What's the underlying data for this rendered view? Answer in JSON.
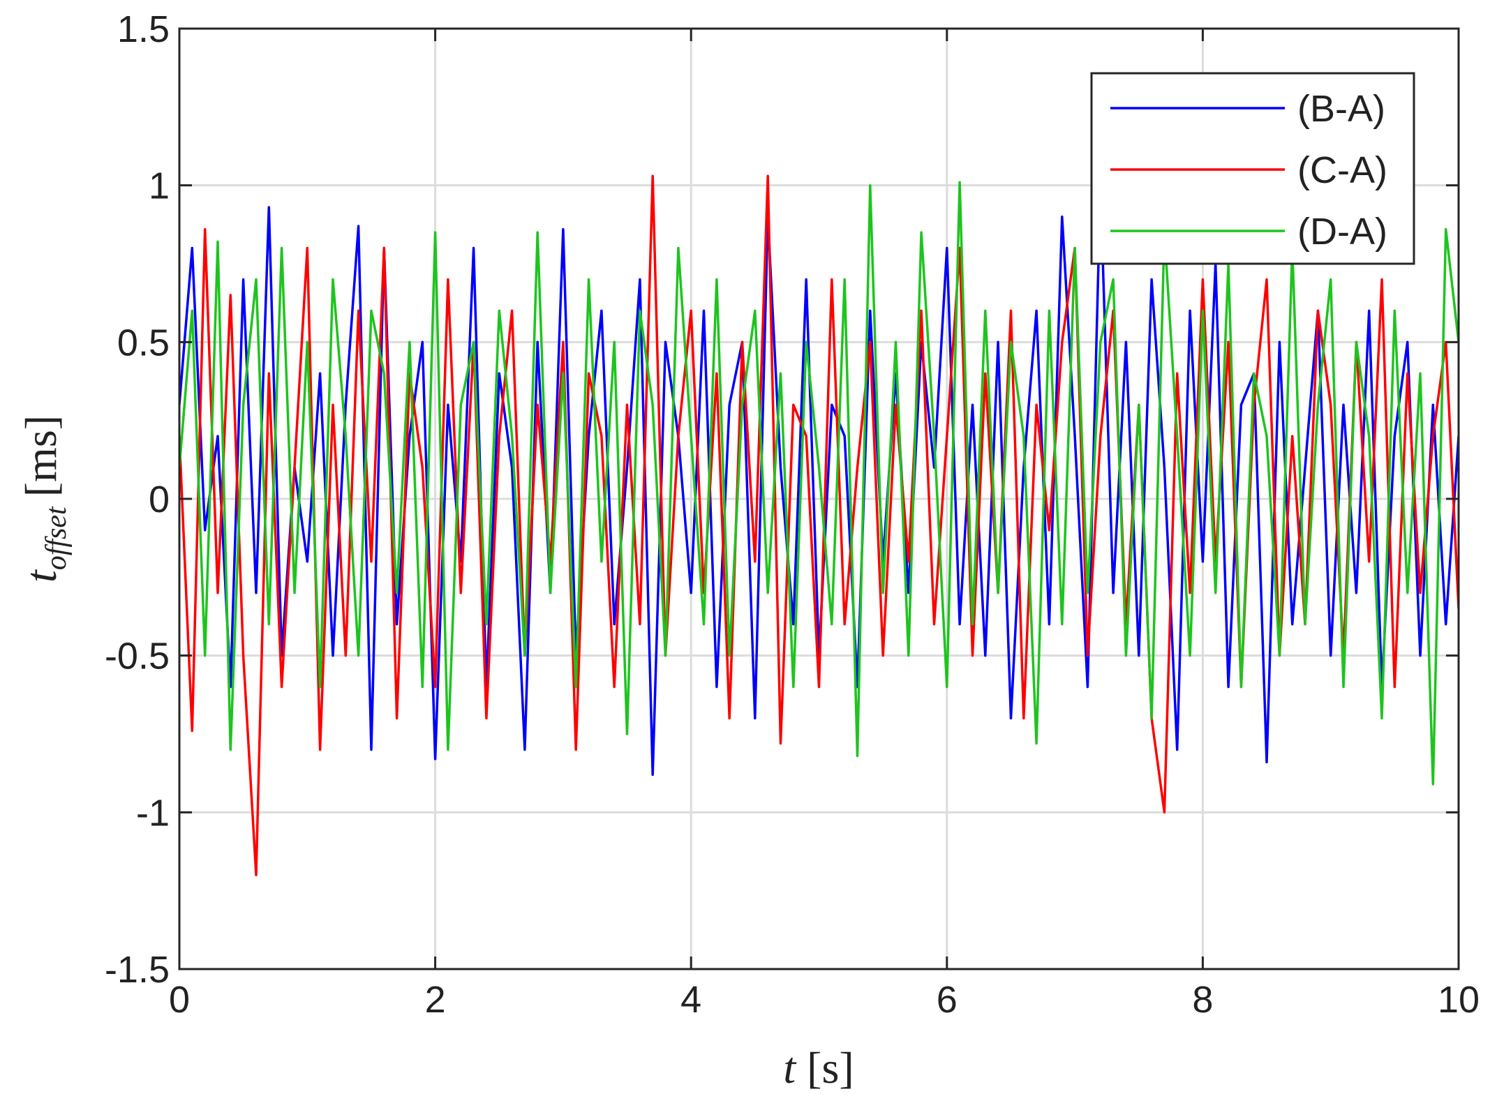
{
  "chart_data": {
    "type": "line",
    "xlabel": "t",
    "xlabel_unit": "[s]",
    "ylabel": "t",
    "ylabel_sub": "offset",
    "ylabel_unit": "[ms]",
    "xlim": [
      0,
      10
    ],
    "xticks": [
      0,
      2,
      4,
      6,
      8,
      10
    ],
    "ylim": [
      -1.5,
      1.5
    ],
    "yticks": [
      -1.5,
      -1,
      -0.5,
      0,
      0.5,
      1,
      1.5
    ],
    "grid": true,
    "legend": "upper right",
    "x": [
      0,
      0.1,
      0.2,
      0.3,
      0.4,
      0.5,
      0.6,
      0.7,
      0.8,
      0.9,
      1,
      1.1,
      1.2,
      1.3,
      1.4,
      1.5,
      1.6,
      1.7,
      1.8,
      1.9,
      2,
      2.1,
      2.2,
      2.3,
      2.4,
      2.5,
      2.6,
      2.7,
      2.8,
      2.9,
      3,
      3.1,
      3.2,
      3.3,
      3.4,
      3.5,
      3.6,
      3.7,
      3.8,
      3.9,
      4,
      4.1,
      4.2,
      4.3,
      4.4,
      4.5,
      4.6,
      4.7,
      4.8,
      4.9,
      5,
      5.1,
      5.2,
      5.3,
      5.4,
      5.5,
      5.6,
      5.7,
      5.8,
      5.9,
      6,
      6.1,
      6.2,
      6.3,
      6.4,
      6.5,
      6.6,
      6.7,
      6.8,
      6.9,
      7,
      7.1,
      7.2,
      7.3,
      7.4,
      7.5,
      7.6,
      7.7,
      7.8,
      7.9,
      8,
      8.1,
      8.2,
      8.3,
      8.4,
      8.5,
      8.6,
      8.7,
      8.8,
      8.9,
      9,
      9.1,
      9.2,
      9.3,
      9.4,
      9.5,
      9.6,
      9.7,
      9.8,
      9.9,
      10
    ],
    "series": [
      {
        "name": "(B-A)",
        "color": "#0000ff",
        "values": [
          0.3,
          0.8,
          -0.1,
          0.2,
          -0.6,
          0.7,
          -0.3,
          0.93,
          -0.5,
          0.1,
          -0.2,
          0.4,
          -0.5,
          0.3,
          0.87,
          -0.8,
          0.8,
          -0.4,
          0.2,
          0.5,
          -0.83,
          0.3,
          -0.2,
          0.8,
          -0.6,
          0.4,
          0.1,
          -0.8,
          0.5,
          -0.3,
          0.86,
          -0.5,
          0.2,
          0.6,
          -0.4,
          0.1,
          0.7,
          -0.88,
          0.5,
          0.2,
          -0.3,
          0.6,
          -0.6,
          0.3,
          0.5,
          -0.7,
          0.9,
          0.1,
          -0.4,
          0.7,
          -0.5,
          0.3,
          0.2,
          -0.6,
          0.6,
          -0.2,
          0.4,
          -0.3,
          0.5,
          0.1,
          0.8,
          -0.4,
          0.3,
          -0.5,
          0.5,
          -0.7,
          0.1,
          0.6,
          -0.4,
          0.9,
          0.2,
          -0.6,
          1.0,
          -0.3,
          0.5,
          -0.5,
          0.7,
          0.1,
          -0.8,
          0.6,
          -0.2,
          0.75,
          -0.6,
          0.3,
          0.4,
          -0.84,
          0.5,
          -0.4,
          0.1,
          0.6,
          -0.5,
          0.3,
          -0.3,
          0.6,
          -0.6,
          0.2,
          0.5,
          -0.5,
          0.3,
          -0.4,
          0.2
        ]
      },
      {
        "name": "(C-A)",
        "color": "#ff0000",
        "values": [
          0.2,
          -0.74,
          0.86,
          -0.3,
          0.65,
          -0.5,
          -1.2,
          0.4,
          -0.6,
          0.1,
          0.8,
          -0.8,
          0.3,
          -0.5,
          0.6,
          -0.2,
          0.8,
          -0.7,
          0.4,
          0.1,
          -0.6,
          0.7,
          -0.3,
          0.5,
          -0.7,
          0.2,
          0.6,
          -0.5,
          0.3,
          -0.2,
          0.5,
          -0.8,
          0.4,
          0.2,
          -0.6,
          0.3,
          -0.4,
          1.03,
          -0.5,
          0.2,
          0.6,
          -0.3,
          0.4,
          -0.7,
          0.5,
          -0.2,
          1.03,
          -0.78,
          0.3,
          0.2,
          -0.6,
          0.7,
          -0.4,
          0.1,
          0.5,
          -0.5,
          0.3,
          -0.2,
          0.6,
          -0.4,
          0.2,
          0.8,
          -0.5,
          0.4,
          -0.3,
          0.6,
          -0.7,
          0.3,
          -0.1,
          0.5,
          0.8,
          -0.5,
          0.2,
          0.6,
          -0.4,
          0.3,
          -0.7,
          -1.0,
          0.4,
          -0.3,
          0.7,
          -0.2,
          0.5,
          -0.6,
          0.3,
          0.7,
          -0.5,
          0.2,
          -0.4,
          0.6,
          0.3,
          -0.5,
          0.5,
          -0.2,
          0.7,
          -0.6,
          0.4,
          -0.3,
          0.2,
          0.5,
          -0.35
        ]
      },
      {
        "name": "(D-A)",
        "color": "#1ec41e",
        "values": [
          0.1,
          0.6,
          -0.5,
          0.82,
          -0.8,
          0.3,
          0.7,
          -0.4,
          0.8,
          -0.3,
          0.5,
          -0.6,
          0.7,
          0.2,
          -0.5,
          0.6,
          0.4,
          -0.3,
          0.5,
          -0.6,
          0.85,
          -0.8,
          0.3,
          0.5,
          -0.4,
          0.6,
          0.2,
          -0.5,
          0.85,
          -0.3,
          0.4,
          -0.6,
          0.7,
          -0.2,
          0.5,
          -0.75,
          0.6,
          0.3,
          -0.5,
          0.8,
          0.2,
          -0.4,
          0.7,
          -0.5,
          0.3,
          0.6,
          -0.3,
          0.4,
          -0.6,
          0.5,
          0.1,
          -0.4,
          0.7,
          -0.82,
          1.0,
          -0.3,
          0.5,
          -0.5,
          0.85,
          0.2,
          -0.6,
          1.01,
          -0.4,
          0.6,
          -0.3,
          0.5,
          0.2,
          -0.78,
          0.6,
          -0.4,
          0.8,
          -0.3,
          0.5,
          0.7,
          -0.5,
          0.3,
          -0.7,
          0.85,
          0.2,
          -0.5,
          0.6,
          -0.3,
          0.75,
          -0.6,
          0.4,
          0.2,
          -0.5,
          0.8,
          -0.4,
          0.3,
          0.7,
          -0.6,
          0.5,
          0.2,
          -0.7,
          0.6,
          -0.3,
          0.4,
          -0.91,
          0.86,
          0.5
        ]
      }
    ]
  }
}
